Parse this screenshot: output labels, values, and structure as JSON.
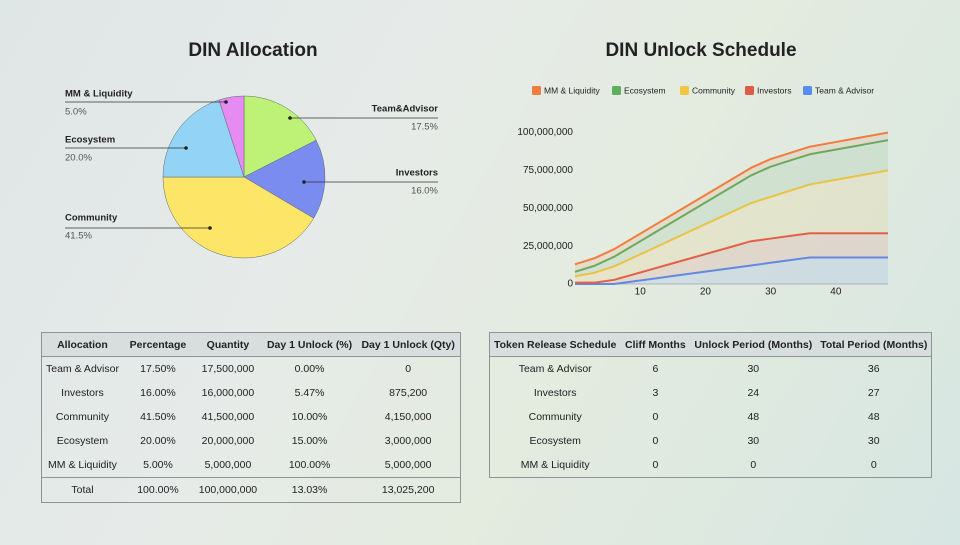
{
  "chart_data": [
    {
      "type": "pie",
      "title": "DIN Allocation",
      "categories": [
        "Team&Advisor",
        "Investors",
        "Community",
        "Ecosystem",
        "MM & Liquidity"
      ],
      "values": [
        17.5,
        16.0,
        41.5,
        20.0,
        5.0
      ],
      "value_labels": [
        "17.5%",
        "16.0%",
        "41.5%",
        "20.0%",
        "5.0%"
      ],
      "colors": [
        "#bdf277",
        "#7b8cf0",
        "#fde568",
        "#93d4f6",
        "#e68bf2"
      ]
    },
    {
      "type": "line",
      "title": "DIN Unlock Schedule",
      "stacked": true,
      "legend": "top",
      "x": [
        0,
        3,
        6,
        9,
        12,
        15,
        18,
        21,
        24,
        27,
        30,
        33,
        36,
        39,
        42,
        45,
        48
      ],
      "xlim": [
        0,
        48
      ],
      "xticks": [
        10,
        20,
        30,
        40
      ],
      "ylim": [
        0,
        105000000
      ],
      "yticks": [
        0,
        {
          "value": 25000000,
          "label": "25,000,000"
        },
        {
          "value": 50000000,
          "label": "50,000,000"
        },
        {
          "value": 75000000,
          "label": "75,000,000"
        },
        {
          "value": 100000000,
          "label": "100,000,000"
        }
      ],
      "series": [
        {
          "name": "MM & Liquidity",
          "color": "#f07c3e",
          "values": [
            5000000,
            5000000,
            5000000,
            5000000,
            5000000,
            5000000,
            5000000,
            5000000,
            5000000,
            5000000,
            5000000,
            5000000,
            5000000,
            5000000,
            5000000,
            5000000,
            5000000
          ]
        },
        {
          "name": "Ecosystem",
          "color": "#62ad62",
          "values": [
            3000000,
            4700000,
            6400000,
            8100000,
            9800000,
            11500000,
            13200000,
            14900000,
            16600000,
            18300000,
            20000000,
            20000000,
            20000000,
            20000000,
            20000000,
            20000000,
            20000000
          ]
        },
        {
          "name": "Community",
          "color": "#f4c545",
          "values": [
            4150000,
            6484375,
            8818750,
            11153125,
            13487500,
            15821875,
            18156250,
            20490625,
            22825000,
            25159375,
            27493750,
            29828125,
            32162500,
            34496875,
            36831250,
            39165625,
            41500000
          ]
        },
        {
          "name": "Investors",
          "color": "#e05a48",
          "values": [
            875200,
            875200,
            2765800,
            4656400,
            6547000,
            8437600,
            10328200,
            12218800,
            14109400,
            16000000,
            16000000,
            16000000,
            16000000,
            16000000,
            16000000,
            16000000,
            16000000
          ]
        },
        {
          "name": "Team & Advisor",
          "color": "#5a8cee",
          "values": [
            0,
            0,
            0,
            1750000,
            3500000,
            5250000,
            7000000,
            8750000,
            10500000,
            12250000,
            14000000,
            15750000,
            17500000,
            17500000,
            17500000,
            17500000,
            17500000
          ]
        }
      ]
    }
  ],
  "allocation_table": {
    "headers": [
      "Allocation",
      "Percentage",
      "Quantity",
      "Day 1 Unlock (%)",
      "Day 1 Unlock (Qty)"
    ],
    "rows": [
      [
        "Team & Advisor",
        "17.50%",
        "17,500,000",
        "0.00%",
        "0"
      ],
      [
        "Investors",
        "16.00%",
        "16,000,000",
        "5.47%",
        "875,200"
      ],
      [
        "Community",
        "41.50%",
        "41,500,000",
        "10.00%",
        "4,150,000"
      ],
      [
        "Ecosystem",
        "20.00%",
        "20,000,000",
        "15.00%",
        "3,000,000"
      ],
      [
        "MM & Liquidity",
        "5.00%",
        "5,000,000",
        "100.00%",
        "5,000,000"
      ]
    ],
    "total": [
      "Total",
      "100.00%",
      "100,000,000",
      "13.03%",
      "13,025,200"
    ]
  },
  "schedule_table": {
    "headers": [
      "Token Release Schedule",
      "Cliff Months",
      "Unlock Period (Months)",
      "Total Period (Months)"
    ],
    "rows": [
      [
        "Team & Advisor",
        "6",
        "30",
        "36"
      ],
      [
        "Investors",
        "3",
        "24",
        "27"
      ],
      [
        "Community",
        "0",
        "48",
        "48"
      ],
      [
        "Ecosystem",
        "0",
        "30",
        "30"
      ],
      [
        "MM & Liquidity",
        "0",
        "0",
        "0"
      ]
    ]
  }
}
